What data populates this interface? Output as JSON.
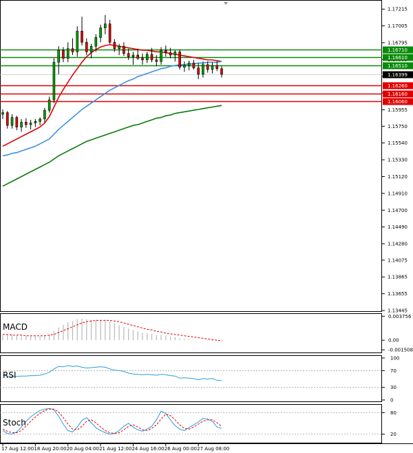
{
  "chart_data": {
    "type": "candlestick",
    "instrument_panel": {
      "y_ticks": [
        "1.17215",
        "1.17005",
        "1.16795",
        "1.16585",
        "1.16375",
        "1.16165",
        "1.15955",
        "1.15750",
        "1.15540",
        "1.15330",
        "1.15120",
        "1.14910",
        "1.14700",
        "1.14490",
        "1.14280",
        "1.14075",
        "1.13865",
        "1.13655",
        "1.13445"
      ],
      "ylim": [
        1.13445,
        1.1726
      ],
      "levels": [
        {
          "label": "1.16710",
          "value": 1.1671,
          "color": "#0a8a0a"
        },
        {
          "label": "1.16610",
          "value": 1.1661,
          "color": "#0a8a0a"
        },
        {
          "label": "1.16510",
          "value": 1.1651,
          "color": "#0a8a0a"
        },
        {
          "label": "1.16260",
          "value": 1.1626,
          "color": "#e00000"
        },
        {
          "label": "1.16160",
          "value": 1.1616,
          "color": "#e00000"
        },
        {
          "label": "1.16060",
          "value": 1.1606,
          "color": "#e00000"
        }
      ],
      "current_price": {
        "label": "1.16399",
        "value": 1.16399
      },
      "candles": [
        [
          1.159,
          1.1596,
          1.1584,
          1.1592
        ],
        [
          1.1592,
          1.1594,
          1.1572,
          1.1576
        ],
        [
          1.1576,
          1.159,
          1.1572,
          1.1586
        ],
        [
          1.1586,
          1.1588,
          1.157,
          1.1574
        ],
        [
          1.1574,
          1.1584,
          1.1568,
          1.158
        ],
        [
          1.158,
          1.1585,
          1.1573,
          1.1577
        ],
        [
          1.1577,
          1.1583,
          1.1571,
          1.1579
        ],
        [
          1.1579,
          1.1584,
          1.1574,
          1.1581
        ],
        [
          1.1581,
          1.1586,
          1.1576,
          1.1584
        ],
        [
          1.1584,
          1.1598,
          1.158,
          1.1595
        ],
        [
          1.1595,
          1.1612,
          1.1592,
          1.1608
        ],
        [
          1.1608,
          1.166,
          1.1604,
          1.1655
        ],
        [
          1.1655,
          1.1675,
          1.164,
          1.167
        ],
        [
          1.167,
          1.1674,
          1.1655,
          1.166
        ],
        [
          1.166,
          1.168,
          1.1655,
          1.1672
        ],
        [
          1.1672,
          1.1685,
          1.1664,
          1.1668
        ],
        [
          1.1668,
          1.17,
          1.1662,
          1.1694
        ],
        [
          1.1694,
          1.1712,
          1.1676,
          1.168
        ],
        [
          1.168,
          1.1685,
          1.1664,
          1.1668
        ],
        [
          1.1668,
          1.1678,
          1.166,
          1.1675
        ],
        [
          1.1675,
          1.169,
          1.1668,
          1.1686
        ],
        [
          1.1686,
          1.1702,
          1.168,
          1.1698
        ],
        [
          1.1698,
          1.1714,
          1.169,
          1.1703
        ],
        [
          1.1703,
          1.1708,
          1.1678,
          1.168
        ],
        [
          1.168,
          1.1684,
          1.1668,
          1.1672
        ],
        [
          1.1672,
          1.1678,
          1.1664,
          1.1675
        ],
        [
          1.1675,
          1.168,
          1.1663,
          1.1666
        ],
        [
          1.1666,
          1.1672,
          1.1658,
          1.1662
        ],
        [
          1.1662,
          1.1668,
          1.1652,
          1.1664
        ],
        [
          1.1664,
          1.1672,
          1.1658,
          1.166
        ],
        [
          1.166,
          1.1666,
          1.1652,
          1.1658
        ],
        [
          1.1658,
          1.1668,
          1.1654,
          1.1665
        ],
        [
          1.1665,
          1.1673,
          1.1655,
          1.1658
        ],
        [
          1.1658,
          1.1664,
          1.165,
          1.1656
        ],
        [
          1.1656,
          1.1674,
          1.1652,
          1.167
        ],
        [
          1.167,
          1.1676,
          1.1662,
          1.1667
        ],
        [
          1.1667,
          1.1673,
          1.166,
          1.1664
        ],
        [
          1.1664,
          1.167,
          1.1656,
          1.1668
        ],
        [
          1.1668,
          1.1671,
          1.1646,
          1.1649
        ],
        [
          1.1649,
          1.1656,
          1.1643,
          1.1651
        ],
        [
          1.1651,
          1.1657,
          1.1645,
          1.1654
        ],
        [
          1.1654,
          1.1658,
          1.1646,
          1.1648
        ],
        [
          1.1648,
          1.1654,
          1.1634,
          1.164
        ],
        [
          1.164,
          1.1656,
          1.1636,
          1.1652
        ],
        [
          1.1652,
          1.1656,
          1.1642,
          1.1646
        ],
        [
          1.1646,
          1.1655,
          1.1641,
          1.1651
        ],
        [
          1.1651,
          1.1656,
          1.1644,
          1.1647
        ],
        [
          1.1647,
          1.165,
          1.1636,
          1.164
        ]
      ],
      "series": [
        {
          "name": "",
          "color": "#e00000",
          "values": [
            1.155,
            1.1553,
            1.1556,
            1.1559,
            1.1562,
            1.1565,
            1.1568,
            1.1571,
            1.1574,
            1.1579,
            1.1587,
            1.1599,
            1.1611,
            1.1621,
            1.163,
            1.1639,
            1.1647,
            1.1655,
            1.1662,
            1.1667,
            1.1671,
            1.1674,
            1.1676,
            1.1677,
            1.1676,
            1.1675,
            1.1674,
            1.1673,
            1.1672,
            1.1671,
            1.167,
            1.167,
            1.1669,
            1.1668,
            1.1668,
            1.1667,
            1.1666,
            1.1665,
            1.1664,
            1.1663,
            1.1662,
            1.1661,
            1.166,
            1.1659,
            1.1658,
            1.1658,
            1.1657,
            1.1656
          ]
        },
        {
          "name": "",
          "color": "#3d8fe0",
          "values": [
            1.1538,
            1.1539,
            1.1541,
            1.1542,
            1.1544,
            1.1546,
            1.1548,
            1.155,
            1.1553,
            1.1556,
            1.1559,
            1.1565,
            1.1571,
            1.1576,
            1.1581,
            1.1586,
            1.1591,
            1.1596,
            1.16,
            1.1604,
            1.1608,
            1.1612,
            1.1616,
            1.162,
            1.1623,
            1.1626,
            1.1629,
            1.1632,
            1.1634,
            1.1637,
            1.1639,
            1.1641,
            1.1643,
            1.1645,
            1.1647,
            1.1648,
            1.165,
            1.1651,
            1.1652,
            1.1652,
            1.1653,
            1.1653,
            1.1654,
            1.1654,
            1.1655,
            1.1655,
            1.1655,
            1.1656
          ]
        },
        {
          "name": "",
          "color": "#0a7a0a",
          "values": [
            1.15,
            1.1503,
            1.1506,
            1.1509,
            1.1512,
            1.1515,
            1.1518,
            1.1521,
            1.1524,
            1.1527,
            1.153,
            1.1534,
            1.1538,
            1.1541,
            1.1544,
            1.1547,
            1.155,
            1.1553,
            1.1556,
            1.1558,
            1.156,
            1.1562,
            1.1564,
            1.1566,
            1.1568,
            1.157,
            1.1572,
            1.1574,
            1.1576,
            1.1577,
            1.1579,
            1.1581,
            1.1583,
            1.1585,
            1.1586,
            1.1588,
            1.1589,
            1.1591,
            1.1592,
            1.1593,
            1.1594,
            1.1595,
            1.1596,
            1.1597,
            1.1598,
            1.1599,
            1.16,
            1.1601
          ]
        }
      ]
    },
    "macd_panel": {
      "title": "MACD",
      "y_ticks": [
        "0.003756",
        "0.00",
        "-0.001508"
      ],
      "ylim": [
        -0.0016,
        0.0039
      ],
      "histogram": [
        0.0008,
        0.0008,
        0.0008,
        0.0007,
        0.0007,
        0.0007,
        0.0006,
        0.0006,
        0.0006,
        0.0007,
        0.0009,
        0.0014,
        0.002,
        0.0024,
        0.0028,
        0.003,
        0.0033,
        0.0034,
        0.0033,
        0.0032,
        0.0032,
        0.0032,
        0.0032,
        0.003,
        0.0027,
        0.0024,
        0.0021,
        0.0018,
        0.0016,
        0.0014,
        0.0012,
        0.0011,
        0.001,
        0.0008,
        0.0008,
        0.0007,
        0.0006,
        0.0005,
        0.0003,
        0.0002,
        0.0001,
        0.0001,
        0.0,
        0.0,
        -0.0001,
        -0.0001,
        -0.0001,
        -0.0002
      ],
      "signal": [
        0.0009,
        0.0009,
        0.0008,
        0.0008,
        0.0008,
        0.0007,
        0.0007,
        0.0007,
        0.0007,
        0.0007,
        0.0008,
        0.0009,
        0.0012,
        0.0015,
        0.0018,
        0.0021,
        0.0024,
        0.0027,
        0.0029,
        0.003,
        0.0031,
        0.0031,
        0.0031,
        0.0031,
        0.003,
        0.0029,
        0.0027,
        0.0025,
        0.0023,
        0.0021,
        0.0019,
        0.0017,
        0.0016,
        0.0014,
        0.0013,
        0.0011,
        0.001,
        0.0009,
        0.0008,
        0.0007,
        0.0006,
        0.0005,
        0.0004,
        0.0003,
        0.0002,
        0.0001,
        0.0,
        -0.0001
      ]
    },
    "rsi_panel": {
      "title": "RSI",
      "y_ticks": [
        "100",
        "70",
        "30",
        "0"
      ],
      "ylim": [
        0,
        100
      ],
      "levels": [
        70,
        30
      ],
      "values": [
        59,
        57,
        56,
        56,
        57,
        57,
        58,
        58,
        59,
        62,
        66,
        74,
        80,
        79,
        82,
        80,
        81,
        78,
        76,
        77,
        78,
        79,
        78,
        74,
        71,
        70,
        68,
        64,
        62,
        61,
        60,
        61,
        60,
        59,
        61,
        60,
        58,
        57,
        52,
        53,
        52,
        51,
        48,
        51,
        50,
        51,
        47,
        46
      ]
    },
    "stoch_panel": {
      "title": "Stoch",
      "y_ticks": [
        "80",
        "20"
      ],
      "ylim": [
        0,
        100
      ],
      "levels": [
        80,
        20
      ],
      "k_values": [
        30,
        22,
        20,
        26,
        40,
        56,
        68,
        78,
        86,
        90,
        92,
        88,
        70,
        48,
        30,
        26,
        40,
        58,
        66,
        52,
        38,
        30,
        24,
        20,
        22,
        30,
        42,
        50,
        40,
        32,
        28,
        34,
        42,
        60,
        84,
        78,
        60,
        44,
        34,
        30,
        38,
        46,
        54,
        64,
        62,
        56,
        40,
        36
      ],
      "d_values": [
        34,
        28,
        24,
        24,
        30,
        42,
        56,
        68,
        78,
        86,
        90,
        90,
        82,
        66,
        48,
        34,
        32,
        42,
        56,
        60,
        52,
        40,
        30,
        24,
        22,
        24,
        32,
        42,
        46,
        40,
        32,
        30,
        36,
        46,
        62,
        76,
        72,
        60,
        46,
        36,
        34,
        40,
        48,
        56,
        60,
        60,
        52,
        42
      ]
    },
    "x_ticks": [
      {
        "label": "17 Aug 12:00",
        "index": 0
      },
      {
        "label": "18 Aug 20:00",
        "index": 7
      },
      {
        "label": "20 Aug 04:00",
        "index": 14
      },
      {
        "label": "21 Aug 12:00",
        "index": 21
      },
      {
        "label": "24 Aug 16:00",
        "index": 28
      },
      {
        "label": "26 Aug 00:00",
        "index": 35
      },
      {
        "label": "27 Aug 08:00",
        "index": 42
      }
    ]
  }
}
